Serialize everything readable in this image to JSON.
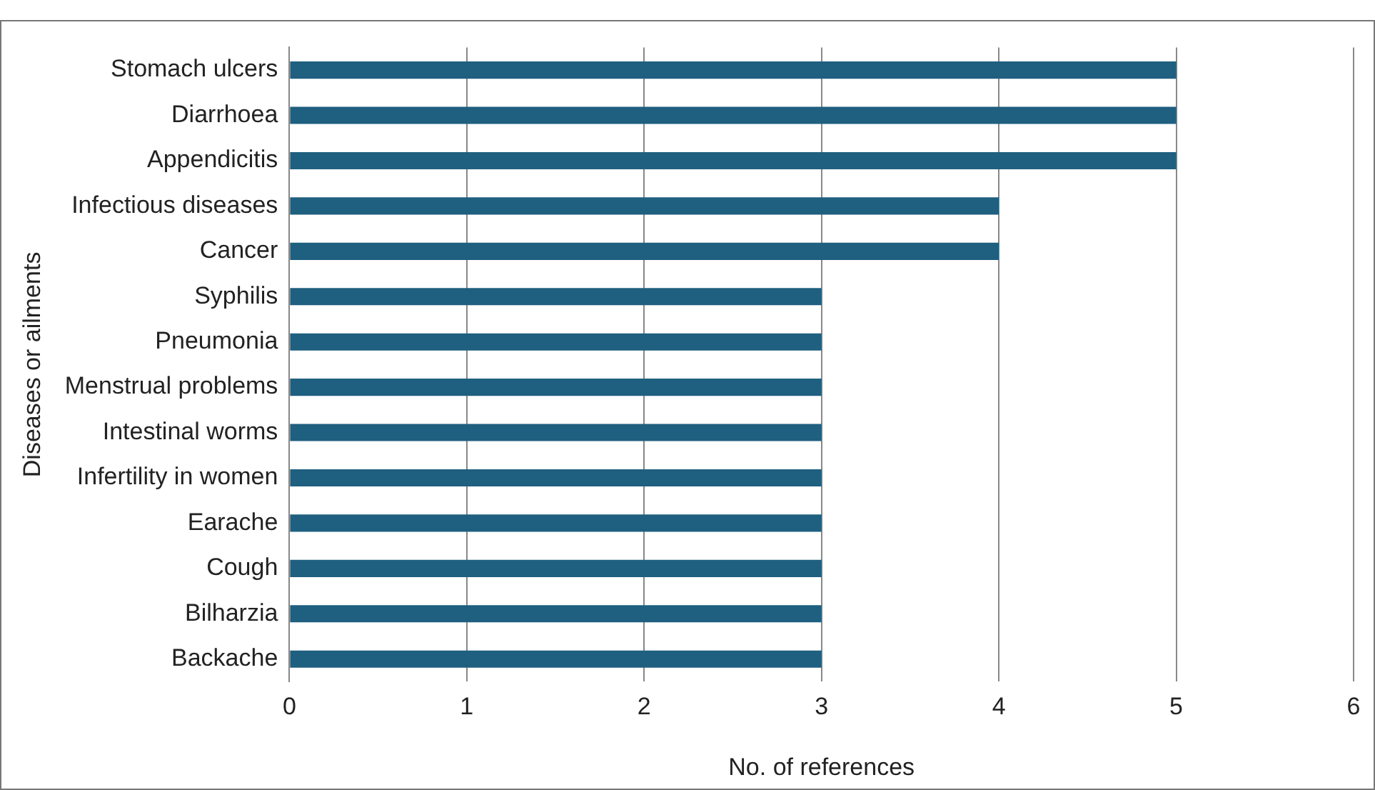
{
  "chart_data": {
    "type": "bar",
    "orientation": "horizontal",
    "xlabel": "No. of references",
    "ylabel": "Diseases or ailments",
    "categories": [
      "Stomach ulcers",
      "Diarrhoea",
      "Appendicitis",
      "Infectious diseases",
      "Cancer",
      "Syphilis",
      "Pneumonia",
      "Menstrual problems",
      "Intestinal worms",
      "Infertility in women",
      "Earache",
      "Cough",
      "Bilharzia",
      "Backache"
    ],
    "values": [
      5,
      5,
      5,
      4,
      4,
      3,
      3,
      3,
      3,
      3,
      3,
      3,
      3,
      3
    ],
    "color": "#1f5f7f",
    "xlim": [
      0,
      6
    ],
    "xticks": [
      0,
      1,
      2,
      3,
      4,
      5,
      6
    ],
    "grid": "x",
    "legend": false
  }
}
